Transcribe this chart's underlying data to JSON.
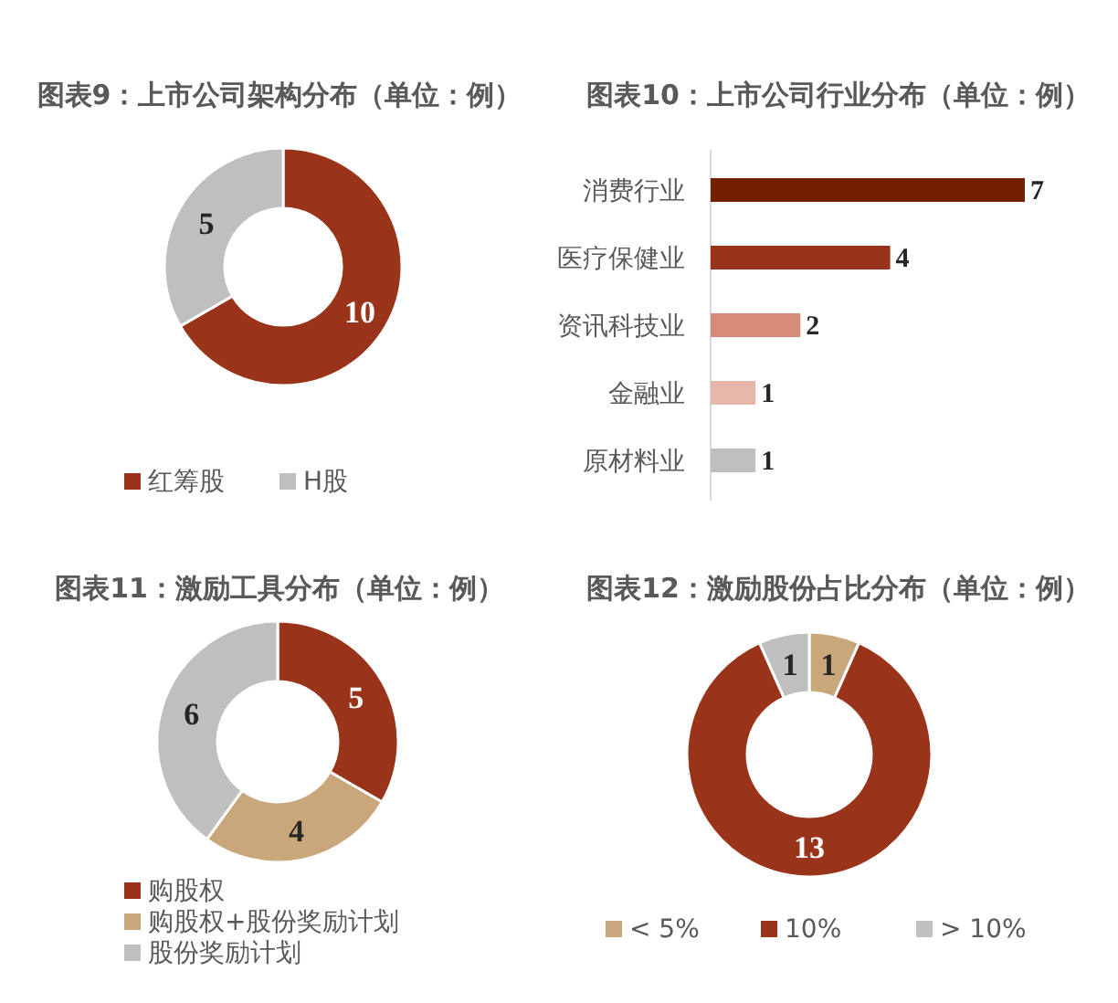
{
  "chart_data": [
    {
      "type": "donut",
      "title": "图表9：上市公司架构分布（单位：例）",
      "categories": [
        "红筹股",
        "H股"
      ],
      "values": [
        10,
        5
      ],
      "colors": [
        "#993319",
        "#bfbfbf"
      ],
      "data_labels": true,
      "legend": "bottom"
    },
    {
      "type": "bar",
      "orientation": "horizontal",
      "title": "图表10：上市公司行业分布（单位：例）",
      "categories": [
        "消费行业",
        "医疗保健业",
        "资讯科技业",
        "金融业",
        "原材料业"
      ],
      "values": [
        7,
        4,
        2,
        1,
        1
      ],
      "colors": [
        "#722000",
        "#993319",
        "#d58b77",
        "#e6b6aa",
        "#bfbfbf"
      ],
      "data_labels": true,
      "tick_labels": "y"
    },
    {
      "type": "donut",
      "title": "图表11：激励工具分布（单位：例）",
      "categories": [
        "购股权",
        "购股权+股份奖励计划",
        "股份奖励计划"
      ],
      "values": [
        5,
        4,
        6
      ],
      "colors": [
        "#993319",
        "#c9a77a",
        "#bfbfbf"
      ],
      "data_labels": true,
      "legend": "bottom"
    },
    {
      "type": "donut",
      "title": "图表12：激励股份占比分布（单位：例）",
      "categories": [
        "< 5%",
        "10%",
        "> 10%"
      ],
      "values": [
        1,
        13,
        1
      ],
      "colors": [
        "#c9a77a",
        "#993319",
        "#bfbfbf"
      ],
      "data_labels": true,
      "legend": "bottom"
    }
  ]
}
